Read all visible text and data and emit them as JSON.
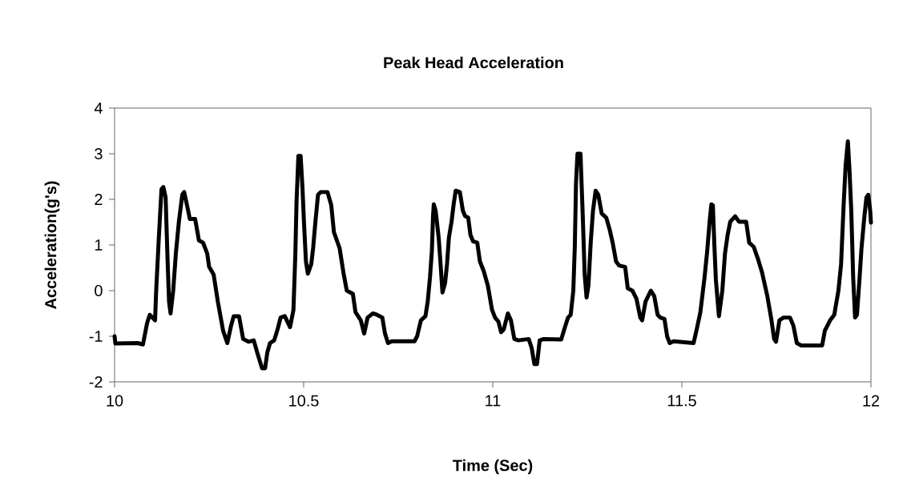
{
  "chart_data": {
    "type": "line",
    "title": "Peak Head Acceleration",
    "xlabel": "Time (Sec)",
    "ylabel": "Acceleration(g's)",
    "xlim": [
      10,
      12
    ],
    "ylim": [
      -2,
      4
    ],
    "xticks": [
      10,
      10.5,
      11,
      11.5,
      12
    ],
    "yticks": [
      -2,
      -1,
      0,
      1,
      2,
      3,
      4
    ],
    "grid": false,
    "series": [
      {
        "color": "#000000",
        "x": [
          10.0,
          10.002,
          10.061,
          10.075,
          10.086,
          10.093,
          10.107,
          10.11,
          10.117,
          10.124,
          10.129,
          10.135,
          10.14,
          10.144,
          10.148,
          10.155,
          10.162,
          10.17,
          10.179,
          10.184,
          10.193,
          10.199,
          10.213,
          10.223,
          10.234,
          10.245,
          10.25,
          10.262,
          10.273,
          10.287,
          10.298,
          10.308,
          10.315,
          10.329,
          10.34,
          10.354,
          10.368,
          10.379,
          10.39,
          10.398,
          10.404,
          10.411,
          10.422,
          10.432,
          10.439,
          10.45,
          10.464,
          10.473,
          10.478,
          10.481,
          10.486,
          10.492,
          10.497,
          10.501,
          10.506,
          10.511,
          10.52,
          10.525,
          10.531,
          10.538,
          10.545,
          10.563,
          10.573,
          10.58,
          10.595,
          10.605,
          10.614,
          10.63,
          10.637,
          10.651,
          10.66,
          10.669,
          10.683,
          10.694,
          10.708,
          10.715,
          10.723,
          10.733,
          10.793,
          10.8,
          10.81,
          10.822,
          10.828,
          10.834,
          10.839,
          10.842,
          10.844,
          10.849,
          10.857,
          10.862,
          10.867,
          10.874,
          10.879,
          10.884,
          10.891,
          10.897,
          10.902,
          10.913,
          10.921,
          10.927,
          10.935,
          10.941,
          10.948,
          10.959,
          10.966,
          10.976,
          10.987,
          10.998,
          11.006,
          11.015,
          11.022,
          11.029,
          11.04,
          11.048,
          11.057,
          11.068,
          11.095,
          11.103,
          11.11,
          11.117,
          11.124,
          11.135,
          11.181,
          11.192,
          11.199,
          11.206,
          11.213,
          11.217,
          11.22,
          11.224,
          11.232,
          11.238,
          11.243,
          11.248,
          11.253,
          11.259,
          11.265,
          11.272,
          11.279,
          11.288,
          11.3,
          11.309,
          11.317,
          11.326,
          11.334,
          11.35,
          11.357,
          11.369,
          11.38,
          11.39,
          11.395,
          11.404,
          11.418,
          11.427,
          11.436,
          11.443,
          11.454,
          11.461,
          11.468,
          11.478,
          11.531,
          11.54,
          11.549,
          11.56,
          11.567,
          11.574,
          11.578,
          11.582,
          11.586,
          11.59,
          11.598,
          11.607,
          11.614,
          11.621,
          11.628,
          11.641,
          11.651,
          11.67,
          11.678,
          11.69,
          11.701,
          11.712,
          11.726,
          11.737,
          11.744,
          11.749,
          11.758,
          11.769,
          11.786,
          11.795,
          11.804,
          11.815,
          11.871,
          11.878,
          11.892,
          11.903,
          11.914,
          11.921,
          11.928,
          11.933,
          11.939,
          11.943,
          11.948,
          11.953,
          11.958,
          11.963,
          11.97,
          11.975,
          11.982,
          11.988,
          11.993,
          11.998,
          12.0
        ],
        "values": [
          -1.0,
          -1.16,
          -1.15,
          -1.18,
          -0.71,
          -0.53,
          -0.65,
          0.0,
          1.16,
          2.22,
          2.27,
          2.04,
          0.7,
          -0.24,
          -0.5,
          0.0,
          0.81,
          1.51,
          2.1,
          2.16,
          1.81,
          1.57,
          1.57,
          1.1,
          1.05,
          0.81,
          0.52,
          0.35,
          -0.24,
          -0.88,
          -1.15,
          -0.77,
          -0.56,
          -0.56,
          -1.06,
          -1.12,
          -1.09,
          -1.41,
          -1.7,
          -1.7,
          -1.35,
          -1.15,
          -1.09,
          -0.82,
          -0.59,
          -0.56,
          -0.8,
          -0.42,
          0.81,
          1.92,
          2.95,
          2.95,
          2.22,
          1.46,
          0.64,
          0.37,
          0.58,
          0.93,
          1.51,
          2.1,
          2.16,
          2.16,
          1.87,
          1.28,
          0.93,
          0.4,
          0.0,
          -0.07,
          -0.47,
          -0.65,
          -0.94,
          -0.59,
          -0.5,
          -0.53,
          -0.59,
          -0.94,
          -1.15,
          -1.11,
          -1.11,
          -1.0,
          -0.65,
          -0.56,
          -0.24,
          0.29,
          0.87,
          1.63,
          1.89,
          1.75,
          1.16,
          0.58,
          -0.04,
          0.17,
          0.58,
          1.16,
          1.51,
          1.92,
          2.19,
          2.16,
          1.75,
          1.63,
          1.6,
          1.22,
          1.08,
          1.05,
          0.64,
          0.43,
          0.11,
          -0.42,
          -0.59,
          -0.68,
          -0.91,
          -0.85,
          -0.5,
          -0.65,
          -1.06,
          -1.09,
          -1.06,
          -1.26,
          -1.61,
          -1.61,
          -1.09,
          -1.06,
          -1.07,
          -0.77,
          -0.59,
          -0.53,
          0.0,
          0.99,
          2.33,
          3.0,
          3.0,
          1.63,
          0.35,
          -0.15,
          0.11,
          1.05,
          1.75,
          2.19,
          2.1,
          1.69,
          1.6,
          1.34,
          1.05,
          0.64,
          0.55,
          0.52,
          0.05,
          0.0,
          -0.18,
          -0.59,
          -0.65,
          -0.24,
          0.0,
          -0.12,
          -0.53,
          -0.59,
          -0.62,
          -1.0,
          -1.15,
          -1.11,
          -1.15,
          -0.82,
          -0.47,
          0.29,
          0.87,
          1.57,
          1.89,
          1.87,
          0.99,
          0.23,
          -0.56,
          0.0,
          0.81,
          1.22,
          1.51,
          1.63,
          1.51,
          1.51,
          1.05,
          0.96,
          0.7,
          0.4,
          -0.12,
          -0.65,
          -1.06,
          -1.12,
          -0.65,
          -0.59,
          -0.59,
          -0.77,
          -1.15,
          -1.2,
          -1.2,
          -0.88,
          -0.65,
          -0.53,
          0.0,
          0.58,
          1.92,
          2.74,
          3.27,
          2.68,
          1.75,
          0.29,
          -0.59,
          -0.53,
          0.29,
          0.93,
          1.57,
          2.04,
          2.1,
          1.75,
          1.49
        ]
      }
    ]
  }
}
